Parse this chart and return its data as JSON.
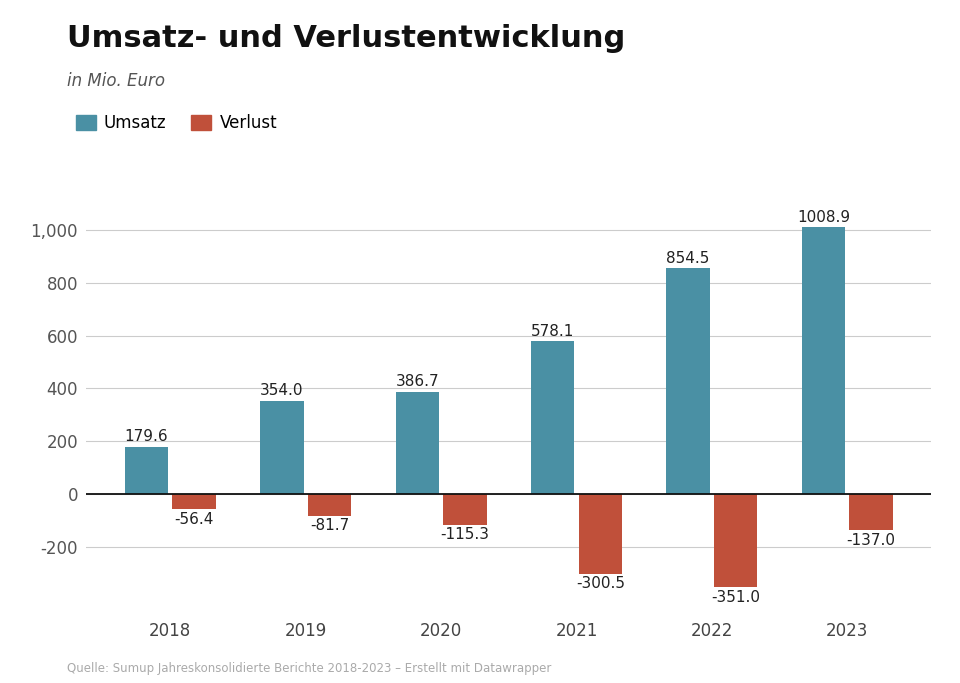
{
  "title": "Umsatz- und Verlustentwicklung",
  "subtitle": "in Mio. Euro",
  "years": [
    "2018",
    "2019",
    "2020",
    "2021",
    "2022",
    "2023"
  ],
  "umsatz": [
    179.6,
    354.0,
    386.7,
    578.1,
    854.5,
    1008.9
  ],
  "verlust": [
    -56.4,
    -81.7,
    -115.3,
    -300.5,
    -351.0,
    -137.0
  ],
  "umsatz_color": "#4a90a4",
  "verlust_color": "#c0503a",
  "background_color": "#ffffff",
  "title_fontsize": 22,
  "subtitle_fontsize": 12,
  "label_fontsize": 11,
  "tick_fontsize": 12,
  "legend_fontsize": 12,
  "bar_width": 0.32,
  "ylim": [
    -430,
    1120
  ],
  "yticks": [
    -200,
    0,
    200,
    400,
    600,
    800,
    1000
  ],
  "zero_line_color": "#111111",
  "grid_color": "#cccccc",
  "source_text": "Quelle: Sumup Jahreskonsolidierte Berichte 2018-2023 – Erstellt mit Datawrapper"
}
